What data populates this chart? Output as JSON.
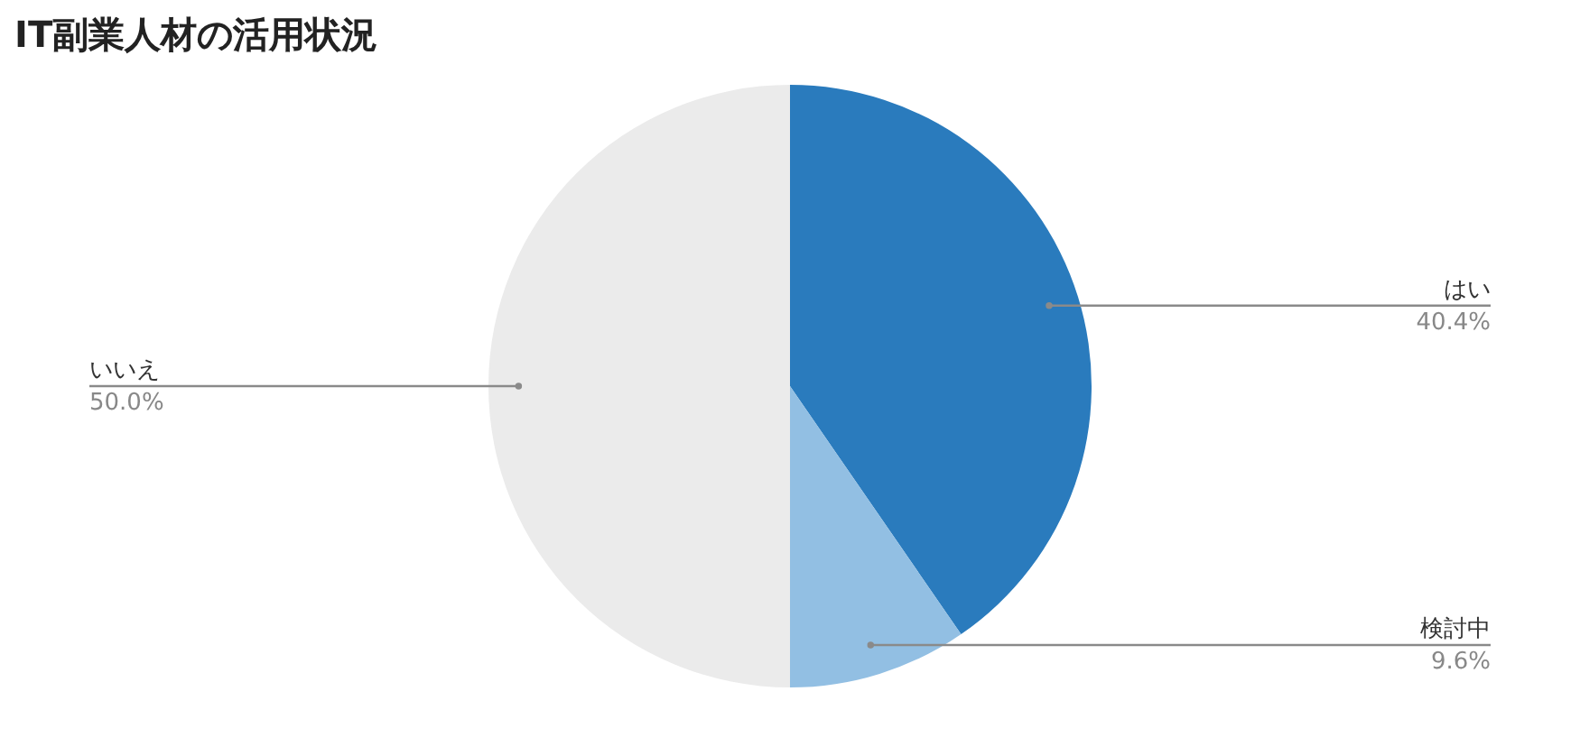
{
  "chart_data": {
    "type": "pie",
    "title": "IT副業人材の活用状況",
    "categories": [
      "はい",
      "検討中",
      "いいえ"
    ],
    "values": [
      40.4,
      9.6,
      50.0
    ],
    "value_labels": [
      "40.4%",
      "9.6%",
      "50.0%"
    ],
    "colors": [
      "#2a7bbd",
      "#92bfe3",
      "#ebebeb"
    ],
    "legend": false
  }
}
